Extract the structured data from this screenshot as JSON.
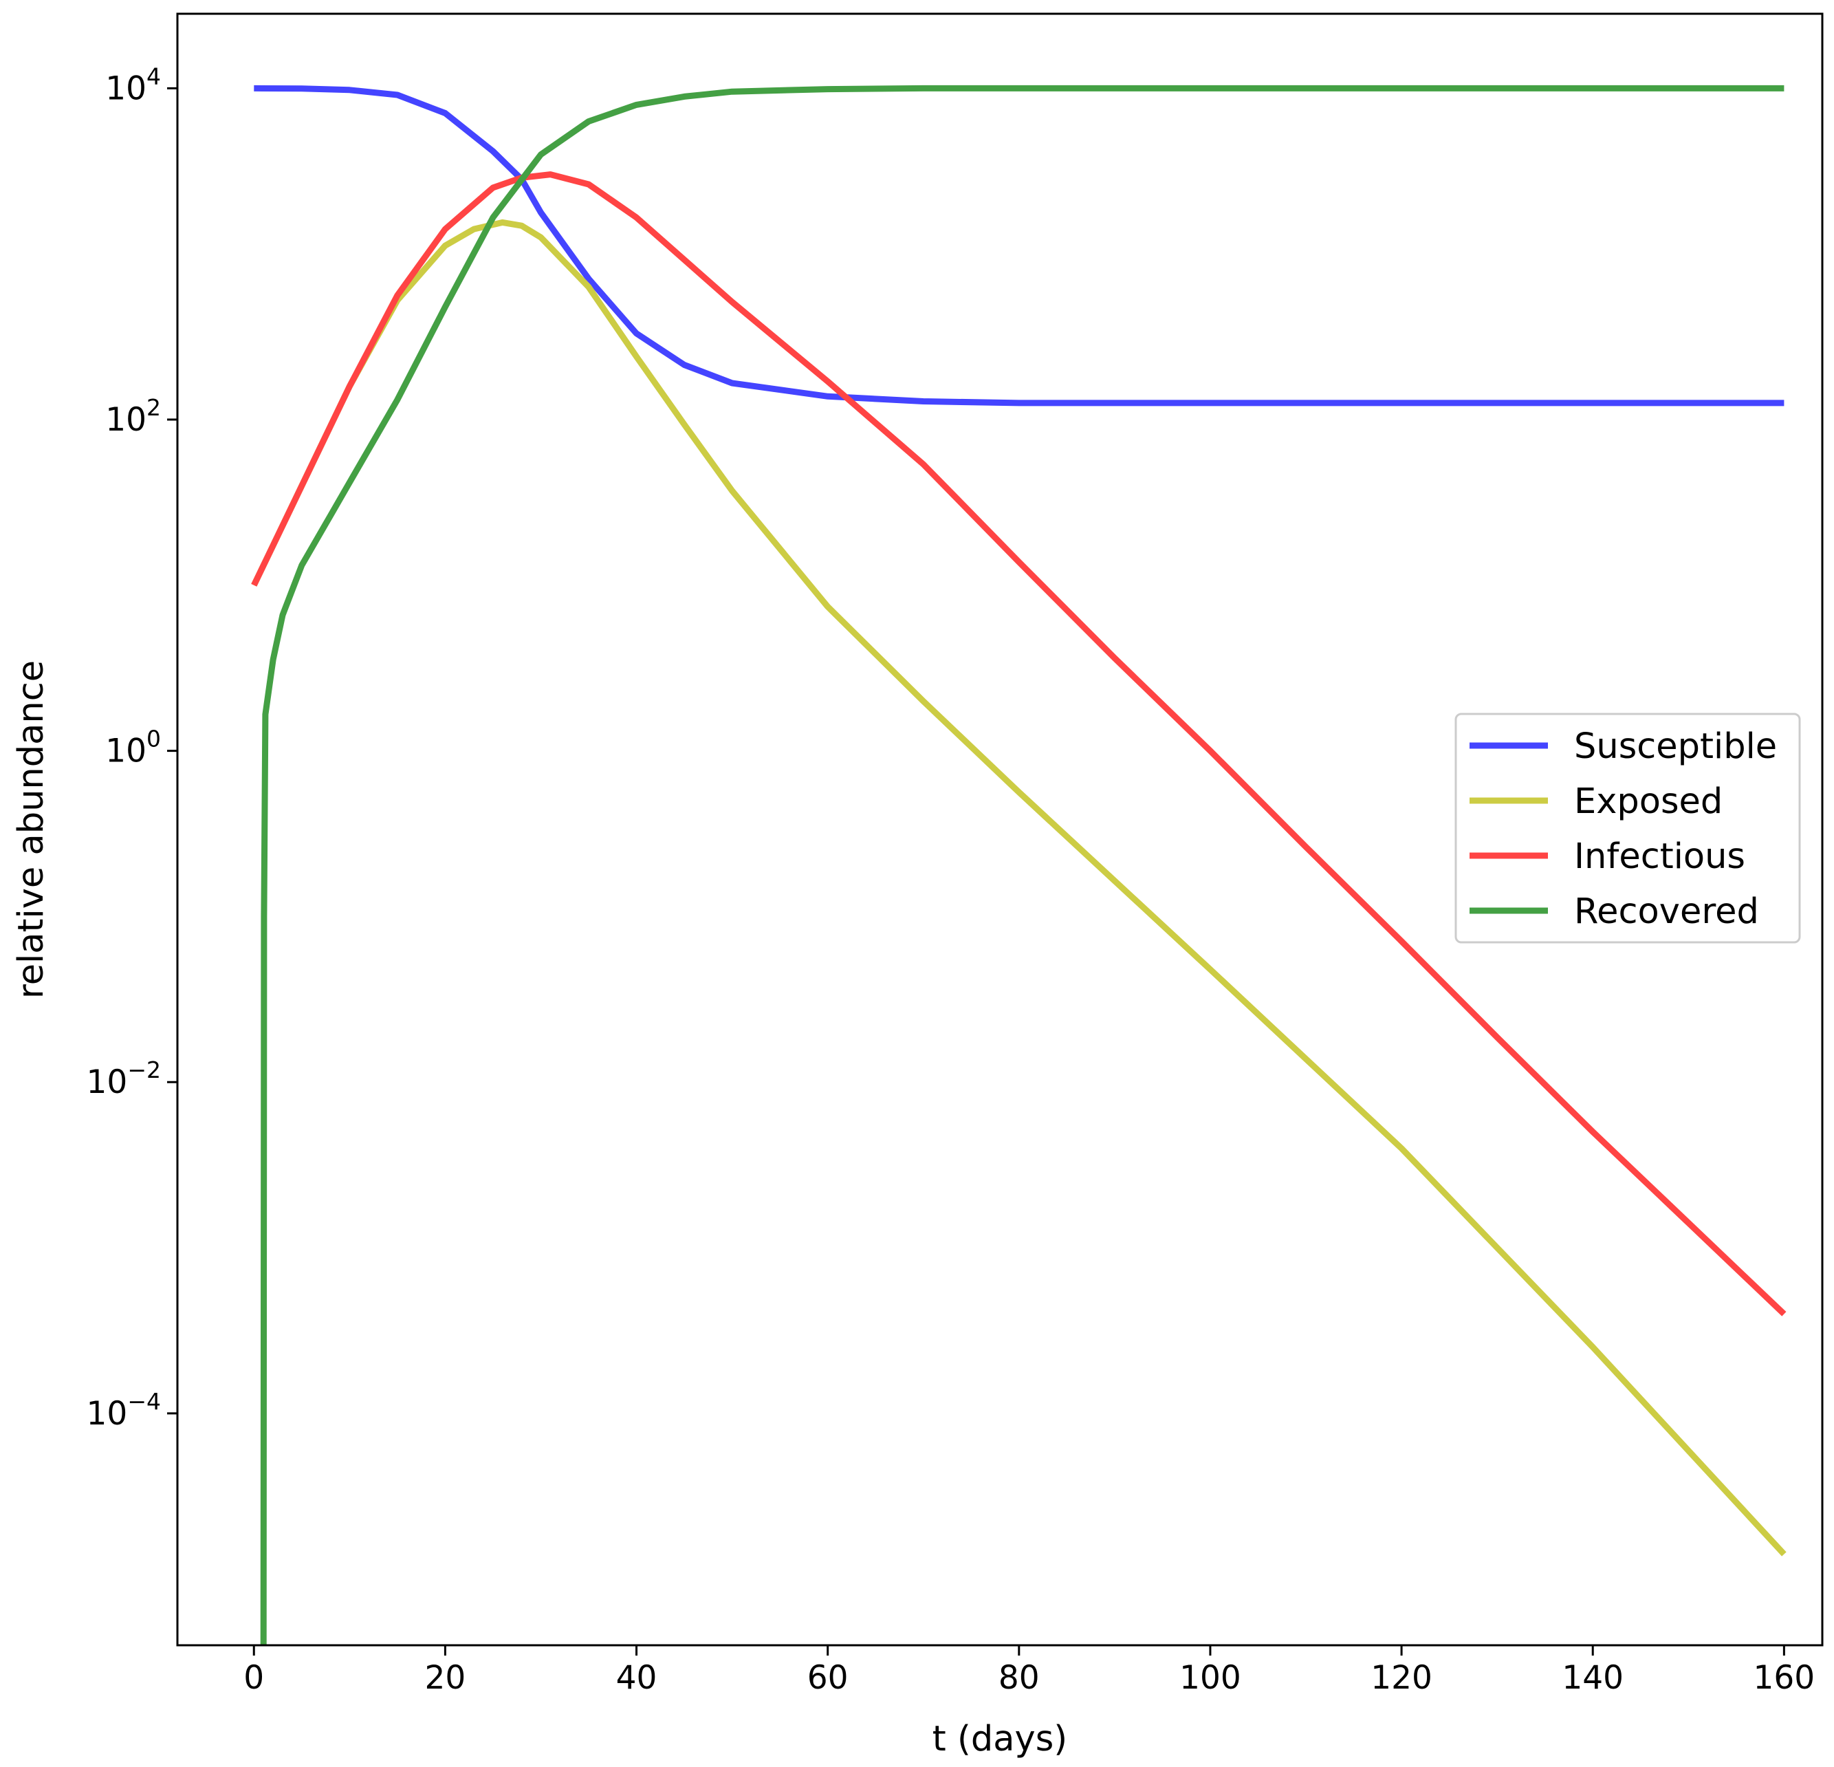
{
  "chart_data": {
    "type": "line",
    "title": "",
    "xlabel": "t (days)",
    "ylabel": "relative abundance",
    "yscale": "log",
    "xlim": [
      -8,
      164
    ],
    "ylim_log10": [
      -5.4,
      4.45
    ],
    "xticks": [
      0,
      20,
      40,
      60,
      80,
      100,
      120,
      140,
      160
    ],
    "xtick_labels": [
      "0",
      "20",
      "40",
      "60",
      "80",
      "100",
      "120",
      "140",
      "160"
    ],
    "yticks": [
      {
        "base": "10",
        "exp": "4",
        "log10": 4
      },
      {
        "base": "10",
        "exp": "2",
        "log10": 2
      },
      {
        "base": "10",
        "exp": "0",
        "log10": 0
      },
      {
        "base": "10",
        "exp": "−2",
        "log10": -2
      },
      {
        "base": "10",
        "exp": "−4",
        "log10": -4
      }
    ],
    "legend_position": "center-right",
    "grid": false,
    "series": [
      {
        "name": "Susceptible",
        "color": "#4444ff",
        "x": [
          0,
          5,
          10,
          15,
          20,
          25,
          28,
          30,
          35,
          40,
          45,
          50,
          60,
          70,
          80,
          100,
          120,
          140,
          160
        ],
        "log10_values": [
          4.0,
          3.998,
          3.99,
          3.96,
          3.85,
          3.62,
          3.45,
          3.25,
          2.85,
          2.52,
          2.33,
          2.22,
          2.14,
          2.11,
          2.1,
          2.1,
          2.1,
          2.1,
          2.1
        ]
      },
      {
        "name": "Exposed",
        "color": "#cccc44",
        "x": [
          0,
          5,
          10,
          15,
          20,
          23,
          26,
          28,
          30,
          35,
          40,
          45,
          50,
          60,
          70,
          80,
          100,
          120,
          140,
          160
        ],
        "log10_values": [
          1.0,
          1.6,
          2.2,
          2.72,
          3.05,
          3.15,
          3.19,
          3.17,
          3.1,
          2.8,
          2.38,
          1.97,
          1.57,
          0.87,
          0.3,
          -0.25,
          -1.32,
          -2.4,
          -3.6,
          -4.85
        ]
      },
      {
        "name": "Infectious",
        "color": "#ff4444",
        "x": [
          0,
          5,
          10,
          15,
          20,
          25,
          28,
          31,
          35,
          40,
          50,
          60,
          70,
          80,
          90,
          100,
          110,
          120,
          130,
          140,
          150,
          160
        ],
        "log10_values": [
          1.0,
          1.6,
          2.2,
          2.75,
          3.15,
          3.4,
          3.46,
          3.48,
          3.42,
          3.22,
          2.71,
          2.23,
          1.73,
          1.14,
          0.56,
          0.0,
          -0.58,
          -1.15,
          -1.73,
          -2.3,
          -2.85,
          -3.4
        ]
      },
      {
        "name": "Recovered",
        "color": "#44a044",
        "x": [
          1,
          1.05,
          1.2,
          2,
          3,
          5,
          8,
          10,
          15,
          20,
          25,
          30,
          35,
          40,
          45,
          50,
          60,
          70,
          80,
          100,
          120,
          140,
          160
        ],
        "log10_values": [
          -5.4,
          -1.0,
          0.22,
          0.55,
          0.82,
          1.12,
          1.42,
          1.62,
          2.12,
          2.68,
          3.22,
          3.6,
          3.8,
          3.9,
          3.95,
          3.98,
          3.995,
          4.0,
          4.0,
          4.0,
          4.0,
          4.0,
          4.0
        ]
      }
    ]
  }
}
